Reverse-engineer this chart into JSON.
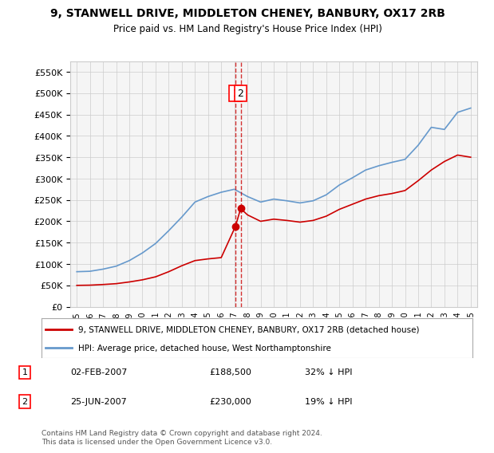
{
  "title": "9, STANWELL DRIVE, MIDDLETON CHENEY, BANBURY, OX17 2RB",
  "subtitle": "Price paid vs. HM Land Registry's House Price Index (HPI)",
  "red_line_label": "9, STANWELL DRIVE, MIDDLETON CHENEY, BANBURY, OX17 2RB (detached house)",
  "blue_line_label": "HPI: Average price, detached house, West Northamptonshire",
  "footer": "Contains HM Land Registry data © Crown copyright and database right 2024.\nThis data is licensed under the Open Government Licence v3.0.",
  "transactions": [
    {
      "num": 1,
      "date": "02-FEB-2007",
      "price": "£188,500",
      "hpi": "32% ↓ HPI"
    },
    {
      "num": 2,
      "date": "25-JUN-2007",
      "price": "£230,000",
      "hpi": "19% ↓ HPI"
    }
  ],
  "sale1_x": 2007.09,
  "sale1_y": 188500,
  "sale2_x": 2007.48,
  "sale2_y": 230000,
  "ylim": [
    0,
    575000
  ],
  "xlim": [
    1994.5,
    2025.5
  ],
  "hpi_years": [
    1995,
    1996,
    1997,
    1998,
    1999,
    2000,
    2001,
    2002,
    2003,
    2004,
    2005,
    2006,
    2007,
    2008,
    2009,
    2010,
    2011,
    2012,
    2013,
    2014,
    2015,
    2016,
    2017,
    2018,
    2019,
    2020,
    2021,
    2022,
    2023,
    2024,
    2025
  ],
  "hpi_values": [
    82000,
    83000,
    88000,
    95000,
    108000,
    126000,
    148000,
    178000,
    210000,
    245000,
    258000,
    268000,
    275000,
    258000,
    245000,
    252000,
    248000,
    243000,
    248000,
    262000,
    285000,
    302000,
    320000,
    330000,
    338000,
    345000,
    378000,
    420000,
    415000,
    455000,
    465000
  ],
  "red_years": [
    1995,
    1996,
    1997,
    1998,
    1999,
    2000,
    2001,
    2002,
    2003,
    2004,
    2005,
    2006,
    2007.09,
    2007.48,
    2008,
    2009,
    2010,
    2011,
    2012,
    2013,
    2014,
    2015,
    2016,
    2017,
    2018,
    2019,
    2020,
    2021,
    2022,
    2023,
    2024,
    2025
  ],
  "red_values": [
    50000,
    50500,
    52000,
    54000,
    58000,
    63000,
    70000,
    82000,
    96000,
    108000,
    112000,
    115000,
    188500,
    230000,
    215000,
    200000,
    205000,
    202000,
    198000,
    202000,
    212000,
    228000,
    240000,
    252000,
    260000,
    265000,
    272000,
    295000,
    320000,
    340000,
    355000,
    350000
  ],
  "red_color": "#cc0000",
  "blue_color": "#6699cc",
  "grid_color": "#cccccc",
  "bg_color": "#ffffff",
  "plot_bg_color": "#f5f5f5"
}
